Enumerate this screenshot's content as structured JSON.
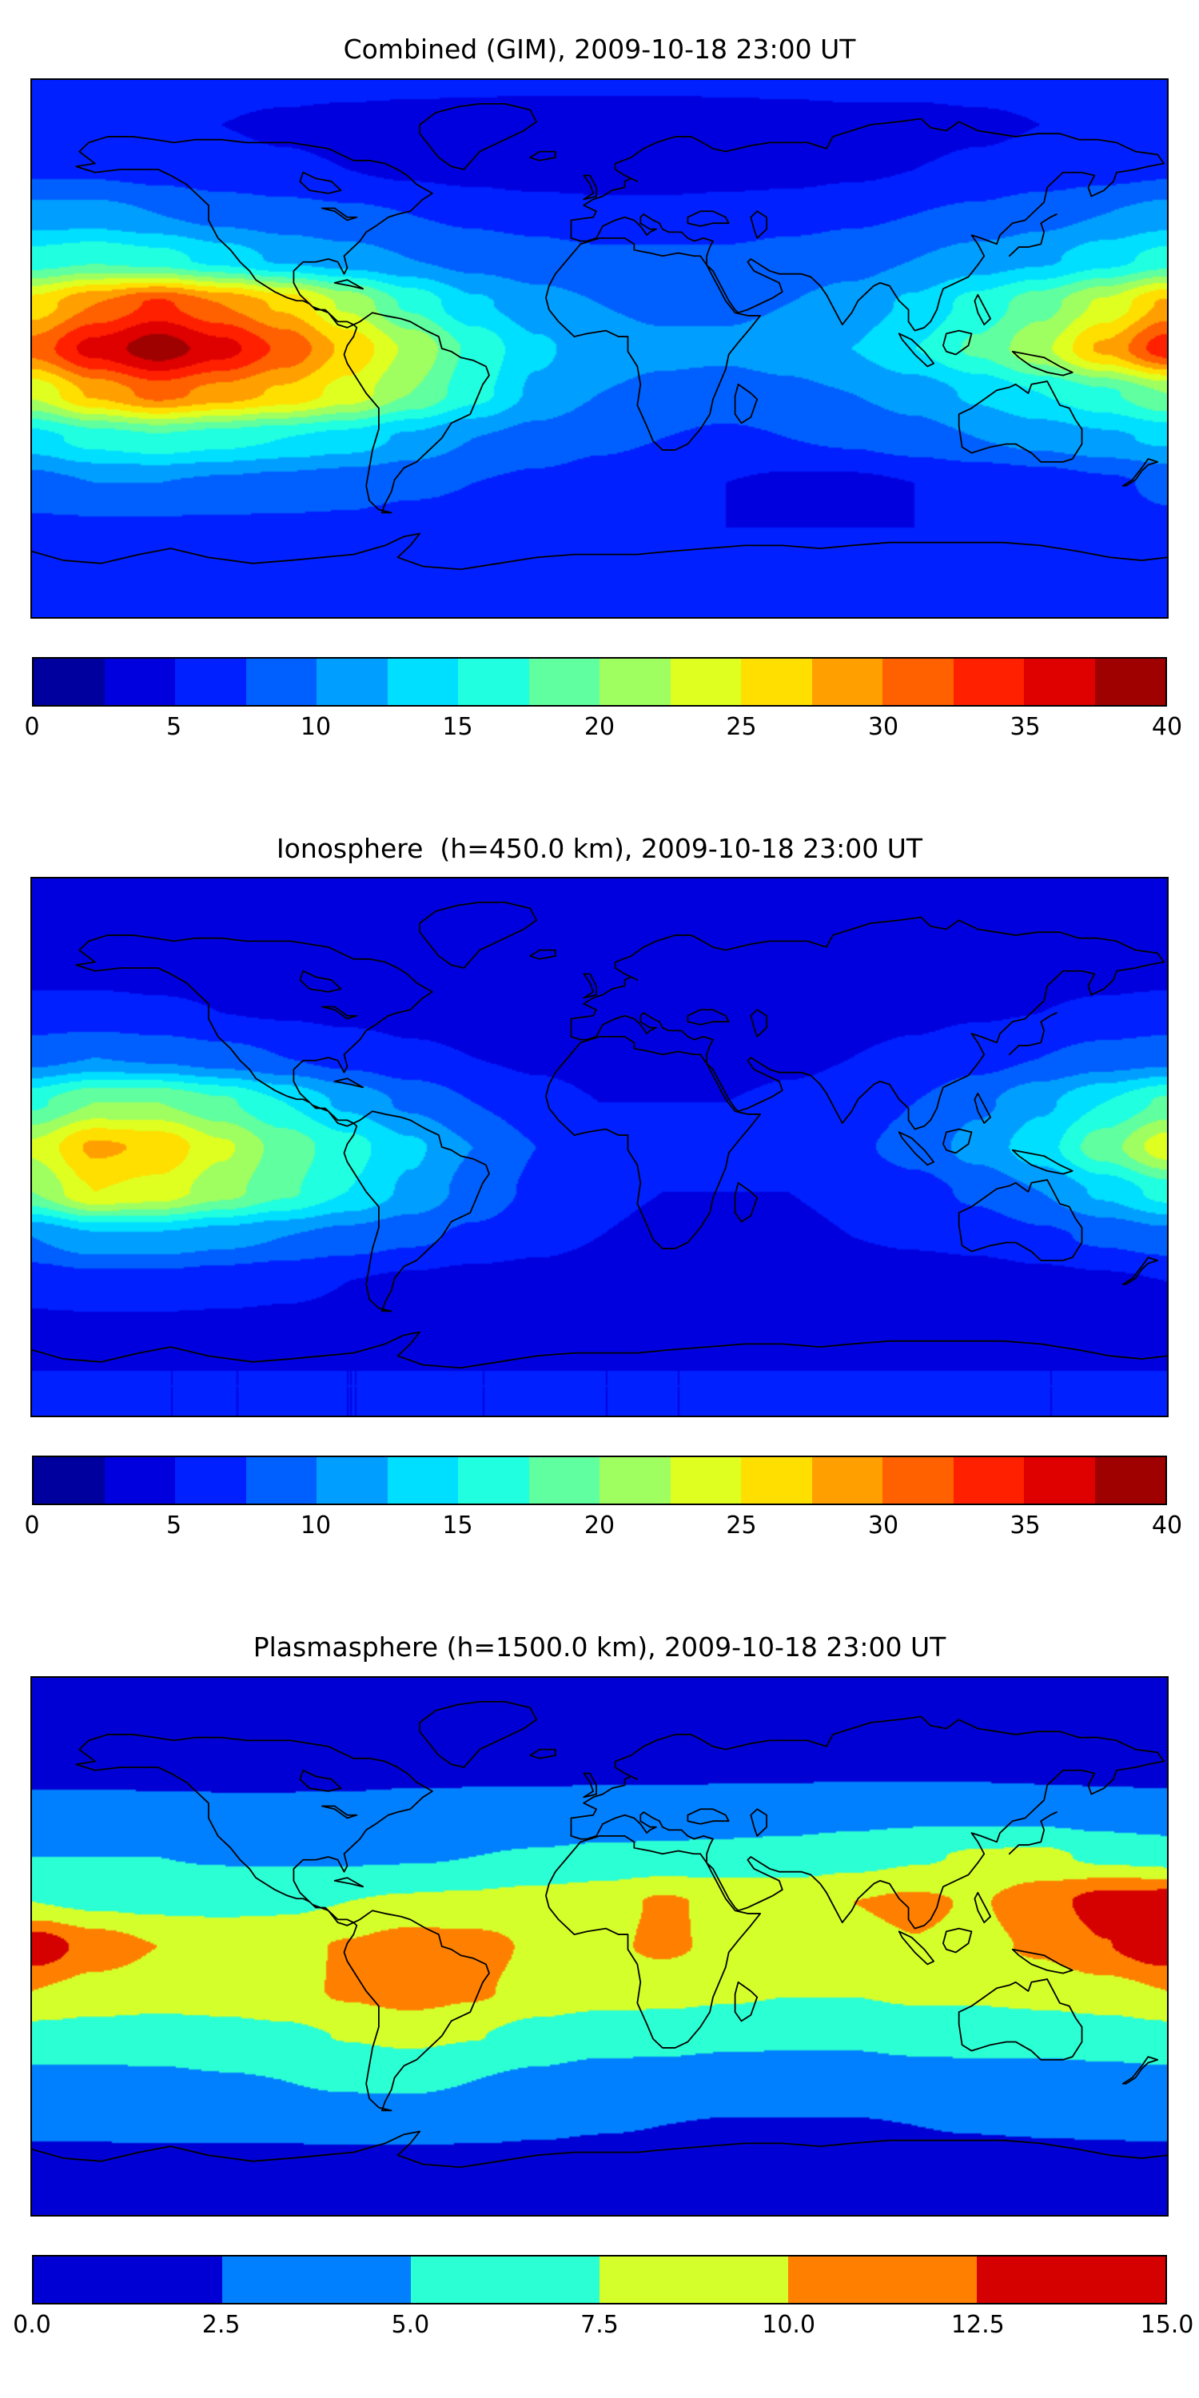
{
  "figure": {
    "background": "#ffffff",
    "text_color": "#000000",
    "colormap_name": "jet"
  },
  "chart_data": [
    {
      "type": "heatmap",
      "title": "Combined (GIM), 2009-10-18 23:00 UT",
      "projection": "equirectangular",
      "colormap": "jet",
      "vmin": 0,
      "vmax": 40,
      "contour_step": 2.5,
      "n_levels": 16,
      "colorbar_ticks": [
        "0",
        "5",
        "10",
        "15",
        "20",
        "25",
        "30",
        "35",
        "40"
      ],
      "lon": [
        -180,
        -160,
        -140,
        -120,
        -100,
        -80,
        -60,
        -40,
        -20,
        0,
        20,
        40,
        60,
        80,
        100,
        120,
        140,
        160,
        180
      ],
      "lat": [
        90,
        75,
        60,
        45,
        30,
        15,
        0,
        -15,
        -30,
        -45,
        -60,
        -75,
        -90
      ],
      "values": [
        [
          6,
          6,
          6,
          6,
          6,
          6,
          6,
          6,
          6,
          6,
          6,
          6,
          6,
          6,
          6,
          6,
          6,
          6,
          6
        ],
        [
          5,
          5,
          5,
          5,
          4.5,
          4,
          3.5,
          3,
          2.5,
          2.5,
          2.5,
          3,
          3.5,
          4,
          4,
          4.5,
          5,
          5,
          5
        ],
        [
          7,
          7,
          6.5,
          6,
          5.5,
          5,
          4.5,
          4,
          3.5,
          3.5,
          3.5,
          4,
          4,
          4.5,
          5,
          5.5,
          6,
          6.5,
          7
        ],
        [
          11,
          11,
          10,
          9,
          8.5,
          8,
          7.5,
          7,
          6.5,
          6,
          6,
          6,
          6.5,
          7,
          7.5,
          8,
          9,
          10,
          11
        ],
        [
          16,
          17,
          16,
          14,
          12,
          11,
          10,
          9,
          8.5,
          8,
          8,
          8,
          8.5,
          9,
          10,
          11,
          12,
          14,
          16
        ],
        [
          26,
          30,
          33,
          30,
          27,
          22,
          17,
          13,
          11,
          10,
          9.5,
          9.5,
          10,
          11,
          13,
          16,
          19,
          23,
          28
        ],
        [
          31,
          36,
          39,
          36,
          32,
          27,
          22,
          17,
          13,
          11,
          10.5,
          10.5,
          11,
          12.5,
          15,
          18,
          22,
          28,
          34
        ],
        [
          23,
          28,
          31,
          29,
          27,
          24,
          20,
          16,
          12,
          10,
          9.5,
          9,
          9.5,
          10,
          11,
          13,
          15,
          17,
          20
        ],
        [
          14,
          16,
          17,
          16,
          15,
          14,
          12,
          10,
          9,
          8,
          7.5,
          7,
          7.5,
          8,
          9,
          10,
          11,
          12,
          13
        ],
        [
          9,
          10,
          10,
          9.5,
          9,
          8.5,
          8,
          7.5,
          7,
          6.5,
          6,
          5,
          4.5,
          4.5,
          5,
          5.5,
          6,
          7,
          8
        ],
        [
          7,
          7,
          7,
          7,
          7,
          7,
          6.5,
          6.5,
          6,
          6,
          5.5,
          5,
          5,
          5,
          5,
          5.5,
          6,
          6.5,
          7
        ],
        [
          7,
          7,
          7,
          7,
          7,
          7,
          7,
          7,
          7,
          7,
          7,
          7,
          7,
          7,
          7,
          7,
          7,
          7,
          7
        ],
        [
          7,
          7,
          7,
          7,
          7,
          7,
          7,
          7,
          7,
          7,
          7,
          7,
          7,
          7,
          7,
          7,
          7,
          7,
          7
        ]
      ]
    },
    {
      "type": "heatmap",
      "title": "Ionosphere  (h=450.0 km), 2009-10-18 23:00 UT",
      "projection": "equirectangular",
      "colormap": "jet",
      "vmin": 0,
      "vmax": 40,
      "contour_step": 2.5,
      "n_levels": 16,
      "colorbar_ticks": [
        "0",
        "5",
        "10",
        "15",
        "20",
        "25",
        "30",
        "35",
        "40"
      ],
      "lon": [
        -180,
        -160,
        -140,
        -120,
        -100,
        -80,
        -60,
        -40,
        -20,
        0,
        20,
        40,
        60,
        80,
        100,
        120,
        140,
        160,
        180
      ],
      "lat": [
        90,
        75,
        60,
        45,
        30,
        15,
        0,
        -15,
        -30,
        -45,
        -60,
        -75,
        -90
      ],
      "values": [
        [
          4,
          4,
          4,
          4,
          4,
          4,
          4,
          4,
          4,
          4,
          4,
          4,
          4,
          4,
          4,
          4,
          4,
          4,
          4
        ],
        [
          3.5,
          3.5,
          3.5,
          3.5,
          3,
          3,
          2.8,
          2.6,
          2.5,
          2.5,
          2.5,
          2.6,
          2.8,
          3,
          3,
          3.2,
          3.5,
          3.5,
          3.5
        ],
        [
          4,
          4,
          4,
          4,
          3.8,
          3.6,
          3.4,
          3.2,
          3,
          3,
          3,
          3,
          3.2,
          3.4,
          3.6,
          3.8,
          4,
          4,
          4
        ],
        [
          6,
          6,
          5.5,
          5,
          4.8,
          4.5,
          4.2,
          4,
          3.8,
          3.6,
          3.6,
          3.8,
          4,
          4.2,
          4.5,
          4.8,
          5,
          5.5,
          6
        ],
        [
          9,
          10,
          9.5,
          8.5,
          7.5,
          6.5,
          5.5,
          5,
          4.5,
          4,
          4,
          4,
          4.5,
          5,
          5.5,
          6.5,
          7.5,
          8.5,
          9
        ],
        [
          17,
          20,
          20,
          18,
          15,
          12,
          9.5,
          7.5,
          6,
          5,
          5,
          5,
          5.5,
          6,
          7.5,
          9.5,
          12,
          15,
          18
        ],
        [
          23,
          28,
          27,
          23,
          19,
          16,
          13,
          10,
          7.5,
          6,
          5.5,
          5.5,
          6,
          7,
          8.5,
          11,
          14,
          19,
          24
        ],
        [
          20,
          25,
          24,
          21,
          18,
          15,
          12,
          9,
          7,
          5.5,
          5,
          5,
          5,
          5.5,
          6.5,
          8,
          10,
          13,
          16
        ],
        [
          10,
          12,
          12,
          11,
          10,
          9,
          8,
          7,
          6,
          5,
          4.5,
          4.5,
          4.5,
          5,
          5.5,
          6,
          7,
          8,
          9
        ],
        [
          6,
          6.5,
          6.5,
          6,
          5.5,
          5,
          4.5,
          4,
          3.8,
          3.5,
          3.2,
          3,
          3,
          3,
          3.2,
          3.5,
          4,
          4.5,
          5
        ],
        [
          4.5,
          4.5,
          4.5,
          4.5,
          4.5,
          4.5,
          4.2,
          4,
          3.8,
          3.6,
          3.5,
          3.5,
          3.5,
          3.5,
          3.6,
          3.8,
          4,
          4.2,
          4.5
        ],
        [
          5,
          5,
          5,
          5,
          5,
          5,
          5,
          5,
          5,
          5,
          5,
          5,
          5,
          5,
          5,
          5,
          5,
          5,
          5
        ],
        [
          5,
          5,
          5,
          5,
          5,
          5,
          5,
          5,
          5,
          5,
          5,
          5,
          5,
          5,
          5,
          5,
          5,
          5,
          5
        ]
      ]
    },
    {
      "type": "heatmap",
      "title": "Plasmasphere (h=1500.0 km), 2009-10-18 23:00 UT",
      "projection": "equirectangular",
      "colormap": "jet",
      "vmin": 0,
      "vmax": 15,
      "contour_step": 2.5,
      "n_levels": 6,
      "colorbar_ticks": [
        "0.0",
        "2.5",
        "5.0",
        "7.5",
        "10.0",
        "12.5",
        "15.0"
      ],
      "lon": [
        -180,
        -160,
        -140,
        -120,
        -100,
        -80,
        -60,
        -40,
        -20,
        0,
        20,
        40,
        60,
        80,
        100,
        120,
        140,
        160,
        180
      ],
      "lat": [
        90,
        75,
        60,
        45,
        30,
        15,
        0,
        -15,
        -30,
        -45,
        -60,
        -75,
        -90
      ],
      "values": [
        [
          1.2,
          1.2,
          1.2,
          1.2,
          1.2,
          1.2,
          1.2,
          1.2,
          1.2,
          1.2,
          1.2,
          1.2,
          1.2,
          1.2,
          1.2,
          1.2,
          1.2,
          1.2,
          1.2
        ],
        [
          1.3,
          1.3,
          1.3,
          1.3,
          1.3,
          1.3,
          1.3,
          1.3,
          1.3,
          1.3,
          1.3,
          1.3,
          1.3,
          1.3,
          1.3,
          1.3,
          1.3,
          1.3,
          1.3
        ],
        [
          1.8,
          1.8,
          1.8,
          1.8,
          1.8,
          1.9,
          2,
          2,
          2,
          2,
          2,
          2,
          2,
          2,
          2,
          1.9,
          1.8,
          1.8,
          1.8
        ],
        [
          3.2,
          3.2,
          3.1,
          3,
          3,
          3,
          3.1,
          3.2,
          3.3,
          3.4,
          3.5,
          3.6,
          3.8,
          4,
          4.2,
          4.2,
          4,
          3.6,
          3.3
        ],
        [
          5,
          5,
          5,
          4.8,
          4.7,
          4.7,
          4.8,
          5,
          5.2,
          5.5,
          5.6,
          5.8,
          6,
          6.5,
          7.2,
          7.8,
          8,
          7,
          6.5
        ],
        [
          7.5,
          7,
          6.8,
          6.8,
          7,
          7.5,
          7.8,
          8,
          8.5,
          9,
          10.3,
          9.5,
          9.2,
          10,
          10.4,
          9.8,
          11.5,
          13.5,
          13.8
        ],
        [
          14.3,
          11.5,
          10,
          9.3,
          9.3,
          10.2,
          11.4,
          11,
          9.6,
          9.5,
          10.4,
          9.5,
          9,
          9.4,
          9.9,
          9.4,
          10.4,
          12.4,
          14.3
        ],
        [
          10,
          9,
          8.5,
          8.5,
          9,
          10.4,
          11.3,
          10.4,
          9,
          8.5,
          8.4,
          8,
          7.6,
          7.6,
          8,
          8,
          8.4,
          9,
          10
        ],
        [
          6.6,
          6.5,
          6.5,
          6.8,
          7,
          7.6,
          8,
          7.6,
          6.6,
          6,
          5.9,
          5.6,
          5.5,
          5.5,
          5.9,
          6,
          6,
          6.2,
          6.6
        ],
        [
          4.4,
          4.4,
          4.5,
          4.8,
          5,
          5.4,
          5.5,
          5,
          4.5,
          4,
          3.9,
          3.6,
          3.5,
          3.5,
          3.8,
          4,
          4,
          4.2,
          4.4
        ],
        [
          2.9,
          2.9,
          3,
          3,
          3,
          3.1,
          3.1,
          3,
          2.8,
          2.6,
          2.5,
          2.4,
          2.4,
          2.4,
          2.5,
          2.6,
          2.7,
          2.8,
          2.9
        ],
        [
          1.6,
          1.6,
          1.6,
          1.6,
          1.6,
          1.6,
          1.6,
          1.6,
          1.6,
          1.6,
          1.6,
          1.6,
          1.6,
          1.6,
          1.6,
          1.6,
          1.6,
          1.6,
          1.6
        ],
        [
          1.3,
          1.3,
          1.3,
          1.3,
          1.3,
          1.3,
          1.3,
          1.3,
          1.3,
          1.3,
          1.3,
          1.3,
          1.3,
          1.3,
          1.3,
          1.3,
          1.3,
          1.3,
          1.3
        ]
      ]
    }
  ]
}
